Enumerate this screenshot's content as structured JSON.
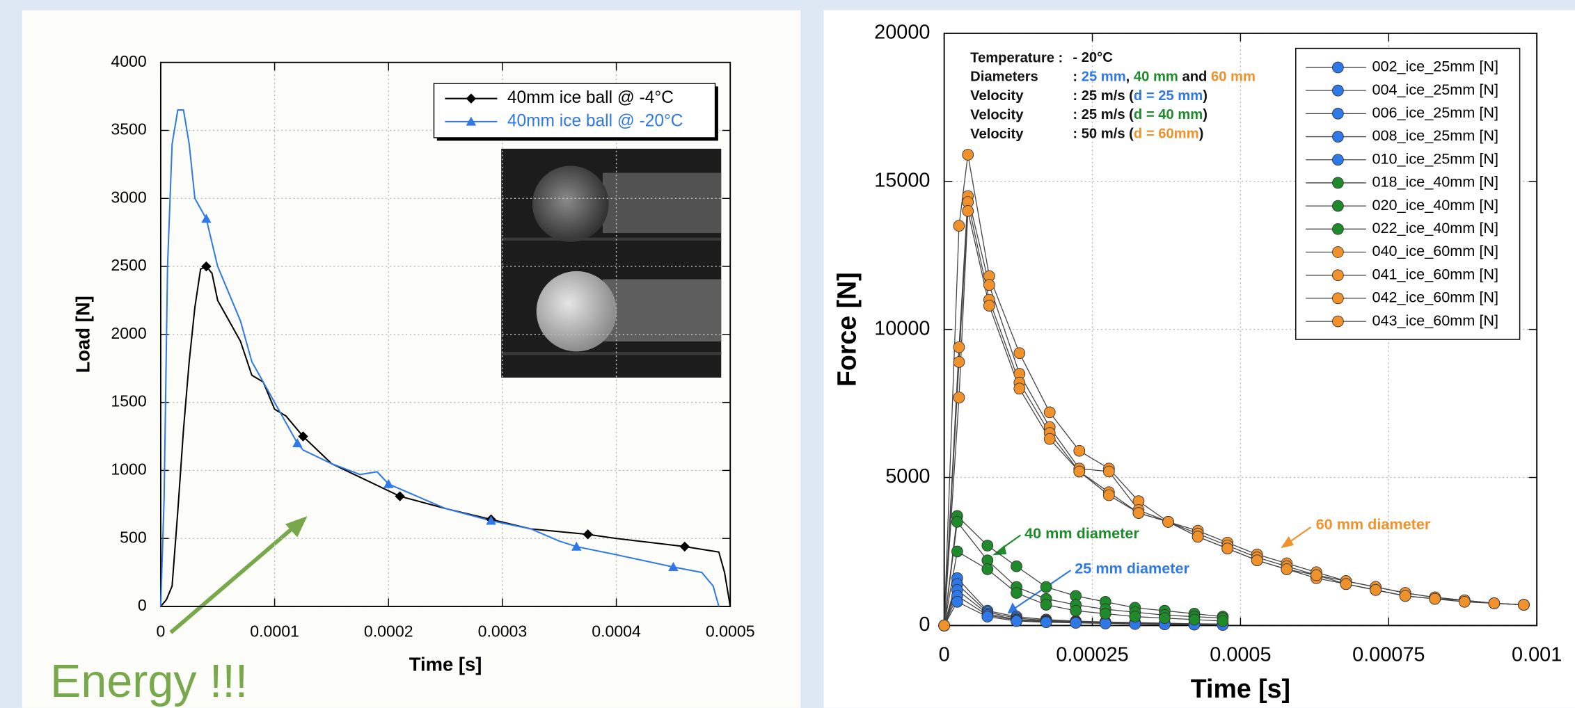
{
  "chart_data": [
    {
      "type": "line",
      "xlabel": "Time [s]",
      "ylabel": "Load [N]",
      "xlim": [
        0,
        0.0005
      ],
      "xticks": [
        0,
        0.0001,
        0.0002,
        0.0003,
        0.0004,
        0.0005
      ],
      "ylim": [
        0,
        4000
      ],
      "yticks": [
        0,
        500,
        1000,
        1500,
        2000,
        2500,
        3000,
        3500,
        4000
      ],
      "grid": true,
      "legend": "upper right",
      "annotation": "Energy !!!",
      "series": [
        {
          "name": "40mm ice ball @ -4°C",
          "color": "#000000",
          "marker": "diamond",
          "x": [
            0,
            5e-06,
            1e-05,
            1.5e-05,
            2e-05,
            2.5e-05,
            3e-05,
            3.5e-05,
            4e-05,
            4.5e-05,
            5e-05,
            6e-05,
            7e-05,
            8e-05,
            9e-05,
            0.0001,
            0.00011,
            0.000125,
            0.00015,
            0.000175,
            0.0002,
            0.00021,
            0.00025,
            0.00029,
            0.000325,
            0.000375,
            0.0004,
            0.00046,
            0.00049,
            0.000495,
            0.0005
          ],
          "values": [
            0,
            50,
            150,
            700,
            1300,
            1800,
            2200,
            2480,
            2500,
            2450,
            2250,
            2100,
            1950,
            1700,
            1650,
            1450,
            1400,
            1250,
            1050,
            950,
            850,
            810,
            720,
            640,
            570,
            530,
            500,
            440,
            400,
            250,
            0
          ],
          "markers": {
            "x": [
              4e-05,
              0.000125,
              0.00021,
              0.00029,
              0.000375,
              0.00046
            ],
            "values": [
              2500,
              1250,
              810,
              640,
              530,
              440
            ]
          }
        },
        {
          "name": "40mm ice ball @ -20°C",
          "color": "#2f78e8",
          "marker": "triangle",
          "x": [
            0,
            3e-06,
            6e-06,
            1e-05,
            1.5e-05,
            2e-05,
            2.5e-05,
            3e-05,
            4e-05,
            5e-05,
            6e-05,
            7e-05,
            8e-05,
            0.0001,
            0.00012,
            0.000125,
            0.00015,
            0.000175,
            0.00019,
            0.0002,
            0.00025,
            0.00029,
            0.000325,
            0.00035,
            0.000365,
            0.0004,
            0.00045,
            0.000475,
            0.000485,
            0.00049
          ],
          "values": [
            0,
            800,
            2500,
            3400,
            3650,
            3650,
            3400,
            3000,
            2850,
            2500,
            2300,
            2100,
            1800,
            1500,
            1200,
            1150,
            1050,
            970,
            990,
            900,
            720,
            630,
            570,
            480,
            440,
            380,
            290,
            250,
            150,
            0
          ],
          "markers": {
            "x": [
              4e-05,
              0.00012,
              0.0002,
              0.00029,
              0.000365,
              0.00045
            ],
            "values": [
              2850,
              1200,
              900,
              630,
              440,
              290
            ]
          }
        }
      ]
    },
    {
      "type": "line",
      "xlabel": "Time [s]",
      "ylabel": "Force [N]",
      "xlim": [
        0,
        0.001
      ],
      "xticks": [
        0,
        0.00025,
        0.0005,
        0.00075,
        0.001
      ],
      "ylim": [
        0,
        20000
      ],
      "yticks": [
        0,
        5000,
        10000,
        15000,
        20000
      ],
      "grid": true,
      "legend": "upper right",
      "line_color": "#444444",
      "notes": [
        {
          "label": "Temperature :",
          "parts": [
            {
              "text": "- 20°C",
              "color": "#111111"
            }
          ]
        },
        {
          "label": "Diameters",
          "parts": [
            {
              "text": ": ",
              "color": "#111111"
            },
            {
              "text": "25 mm",
              "color": "#2f78e8"
            },
            {
              "text": ", ",
              "color": "#111111"
            },
            {
              "text": "40 mm",
              "color": "#1e8a2a"
            },
            {
              "text": " and ",
              "color": "#111111"
            },
            {
              "text": "60 mm",
              "color": "#f0922b"
            }
          ]
        },
        {
          "label": "Velocity",
          "parts": [
            {
              "text": ": 25 m/s (",
              "color": "#111111"
            },
            {
              "text": "d = 25 mm",
              "color": "#2f78e8"
            },
            {
              "text": ")",
              "color": "#111111"
            }
          ]
        },
        {
          "label": "Velocity",
          "parts": [
            {
              "text": ": 25 m/s (",
              "color": "#111111"
            },
            {
              "text": "d = 40 mm",
              "color": "#1e8a2a"
            },
            {
              "text": ")",
              "color": "#111111"
            }
          ]
        },
        {
          "label": "Velocity",
          "parts": [
            {
              "text": ": 50 m/s (",
              "color": "#111111"
            },
            {
              "text": "d = 60mm",
              "color": "#f0922b"
            },
            {
              "text": ")",
              "color": "#111111"
            }
          ]
        }
      ],
      "labels": [
        {
          "text": "40 mm diameter",
          "color": "#1e8a2a"
        },
        {
          "text": "25 mm diameter",
          "color": "#2f78e8"
        },
        {
          "text": "60 mm diameter",
          "color": "#f0922b"
        }
      ],
      "series": [
        {
          "name": "002_ice_25mm [N]",
          "color": "#2f78e8",
          "x": [
            0,
            2.2e-05,
            7.3e-05,
            0.000122,
            0.000172,
            0.000222,
            0.000272,
            0.000322,
            0.000372,
            0.000422,
            0.00047
          ],
          "values": [
            0,
            1600,
            500,
            300,
            200,
            150,
            120,
            100,
            80,
            60,
            50
          ]
        },
        {
          "name": "004_ice_25mm [N]",
          "color": "#2f78e8",
          "x": [
            0,
            2.2e-05,
            7.3e-05,
            0.000122,
            0.000172,
            0.000222,
            0.000272,
            0.000322,
            0.000372,
            0.000422,
            0.00047
          ],
          "values": [
            0,
            1400,
            450,
            250,
            170,
            130,
            100,
            80,
            60,
            50,
            40
          ]
        },
        {
          "name": "006_ice_25mm [N]",
          "color": "#2f78e8",
          "x": [
            0,
            2.2e-05,
            7.3e-05,
            0.000122,
            0.000172,
            0.000222,
            0.000272,
            0.000322,
            0.000372,
            0.000422,
            0.00047
          ],
          "values": [
            0,
            1200,
            400,
            200,
            150,
            110,
            90,
            70,
            50,
            40,
            30
          ]
        },
        {
          "name": "008_ice_25mm [N]",
          "color": "#2f78e8",
          "x": [
            0,
            2.2e-05,
            7.3e-05,
            0.000122,
            0.000172,
            0.000222,
            0.000272,
            0.000322,
            0.000372,
            0.000422,
            0.00047
          ],
          "values": [
            0,
            1000,
            350,
            180,
            130,
            100,
            80,
            60,
            45,
            35,
            25
          ]
        },
        {
          "name": "010_ice_25mm [N]",
          "color": "#2f78e8",
          "x": [
            0,
            2.2e-05,
            7.3e-05,
            0.000122,
            0.000172,
            0.000222,
            0.000272,
            0.000322,
            0.000372,
            0.000422,
            0.00047
          ],
          "values": [
            0,
            800,
            300,
            150,
            110,
            90,
            70,
            50,
            40,
            30,
            20
          ]
        },
        {
          "name": "018_ice_40mm [N]",
          "color": "#1e8a2a",
          "x": [
            0,
            2.2e-05,
            7.3e-05,
            0.000122,
            0.000172,
            0.000222,
            0.000272,
            0.000322,
            0.000372,
            0.000422,
            0.00047
          ],
          "values": [
            0,
            3700,
            2700,
            2000,
            1300,
            1000,
            800,
            600,
            500,
            400,
            300
          ]
        },
        {
          "name": "020_ice_40mm [N]",
          "color": "#1e8a2a",
          "x": [
            0,
            2.2e-05,
            7.3e-05,
            0.000122,
            0.000172,
            0.000222,
            0.000272,
            0.000322,
            0.000372,
            0.000422,
            0.00047
          ],
          "values": [
            0,
            3500,
            2200,
            1300,
            900,
            700,
            550,
            450,
            350,
            300,
            250
          ]
        },
        {
          "name": "022_ice_40mm [N]",
          "color": "#1e8a2a",
          "x": [
            0,
            2.2e-05,
            7.3e-05,
            0.000122,
            0.000172,
            0.000222,
            0.000272,
            0.000322,
            0.000372,
            0.000422,
            0.00047
          ],
          "values": [
            0,
            2500,
            1900,
            1100,
            700,
            500,
            400,
            300,
            250,
            200,
            150
          ]
        },
        {
          "name": "040_ice_60mm [N]",
          "color": "#f0922b",
          "x": [
            0,
            2.5e-05,
            4e-05,
            7.6e-05,
            0.000127,
            0.000178,
            0.000228,
            0.000278,
            0.000328,
            0.000378,
            0.000428,
            0.000478,
            0.000528,
            0.000578,
            0.000628,
            0.000678,
            0.000728,
            0.000778,
            0.000828,
            0.000878,
            0.000928,
            0.000978
          ],
          "values": [
            0,
            13500,
            15900,
            11800,
            9200,
            7200,
            5900,
            5300,
            4200,
            3500,
            3200,
            2800,
            2400,
            2100,
            1800,
            1500,
            1300,
            1100,
            950,
            850,
            750,
            700
          ]
        },
        {
          "name": "041_ice_60mm [N]",
          "color": "#f0922b",
          "x": [
            0,
            2.5e-05,
            4e-05,
            7.6e-05,
            0.000127,
            0.000178,
            0.000228,
            0.000278,
            0.000328,
            0.000378,
            0.000428,
            0.000478,
            0.000528,
            0.000578,
            0.000628,
            0.000678,
            0.000728,
            0.000778,
            0.000828,
            0.000878,
            0.000928,
            0.000978
          ],
          "values": [
            0,
            9400,
            14500,
            11500,
            8500,
            6700,
            5300,
            5200,
            3900,
            3500,
            3100,
            2700,
            2300,
            2000,
            1700,
            1500,
            1300,
            1100,
            950,
            850,
            750,
            700
          ]
        },
        {
          "name": "042_ice_60mm [N]",
          "color": "#f0922b",
          "x": [
            0,
            2.5e-05,
            4e-05,
            7.6e-05,
            0.000127,
            0.000178,
            0.000228,
            0.000278,
            0.000328,
            0.000378,
            0.000428,
            0.000478,
            0.000528,
            0.000578,
            0.000628,
            0.000678,
            0.000728,
            0.000778,
            0.000828,
            0.000878,
            0.000928,
            0.000978
          ],
          "values": [
            0,
            8900,
            14300,
            11000,
            8200,
            6500,
            5200,
            4500,
            3800,
            3500,
            3000,
            2600,
            2200,
            1900,
            1600,
            1400,
            1200,
            1000,
            900,
            850,
            750,
            700
          ]
        },
        {
          "name": "043_ice_60mm [N]",
          "color": "#f0922b",
          "x": [
            0,
            2.5e-05,
            4e-05,
            7.6e-05,
            0.000127,
            0.000178,
            0.000228,
            0.000278,
            0.000328,
            0.000378,
            0.000428,
            0.000478,
            0.000528,
            0.000578,
            0.000628,
            0.000678,
            0.000728,
            0.000778,
            0.000828,
            0.000878,
            0.000928,
            0.000978
          ],
          "values": [
            0,
            7700,
            14000,
            10800,
            8000,
            6300,
            5200,
            4400,
            3800,
            3500,
            3000,
            2600,
            2200,
            1900,
            1700,
            1400,
            1200,
            1000,
            900,
            800,
            750,
            700
          ]
        }
      ]
    }
  ]
}
